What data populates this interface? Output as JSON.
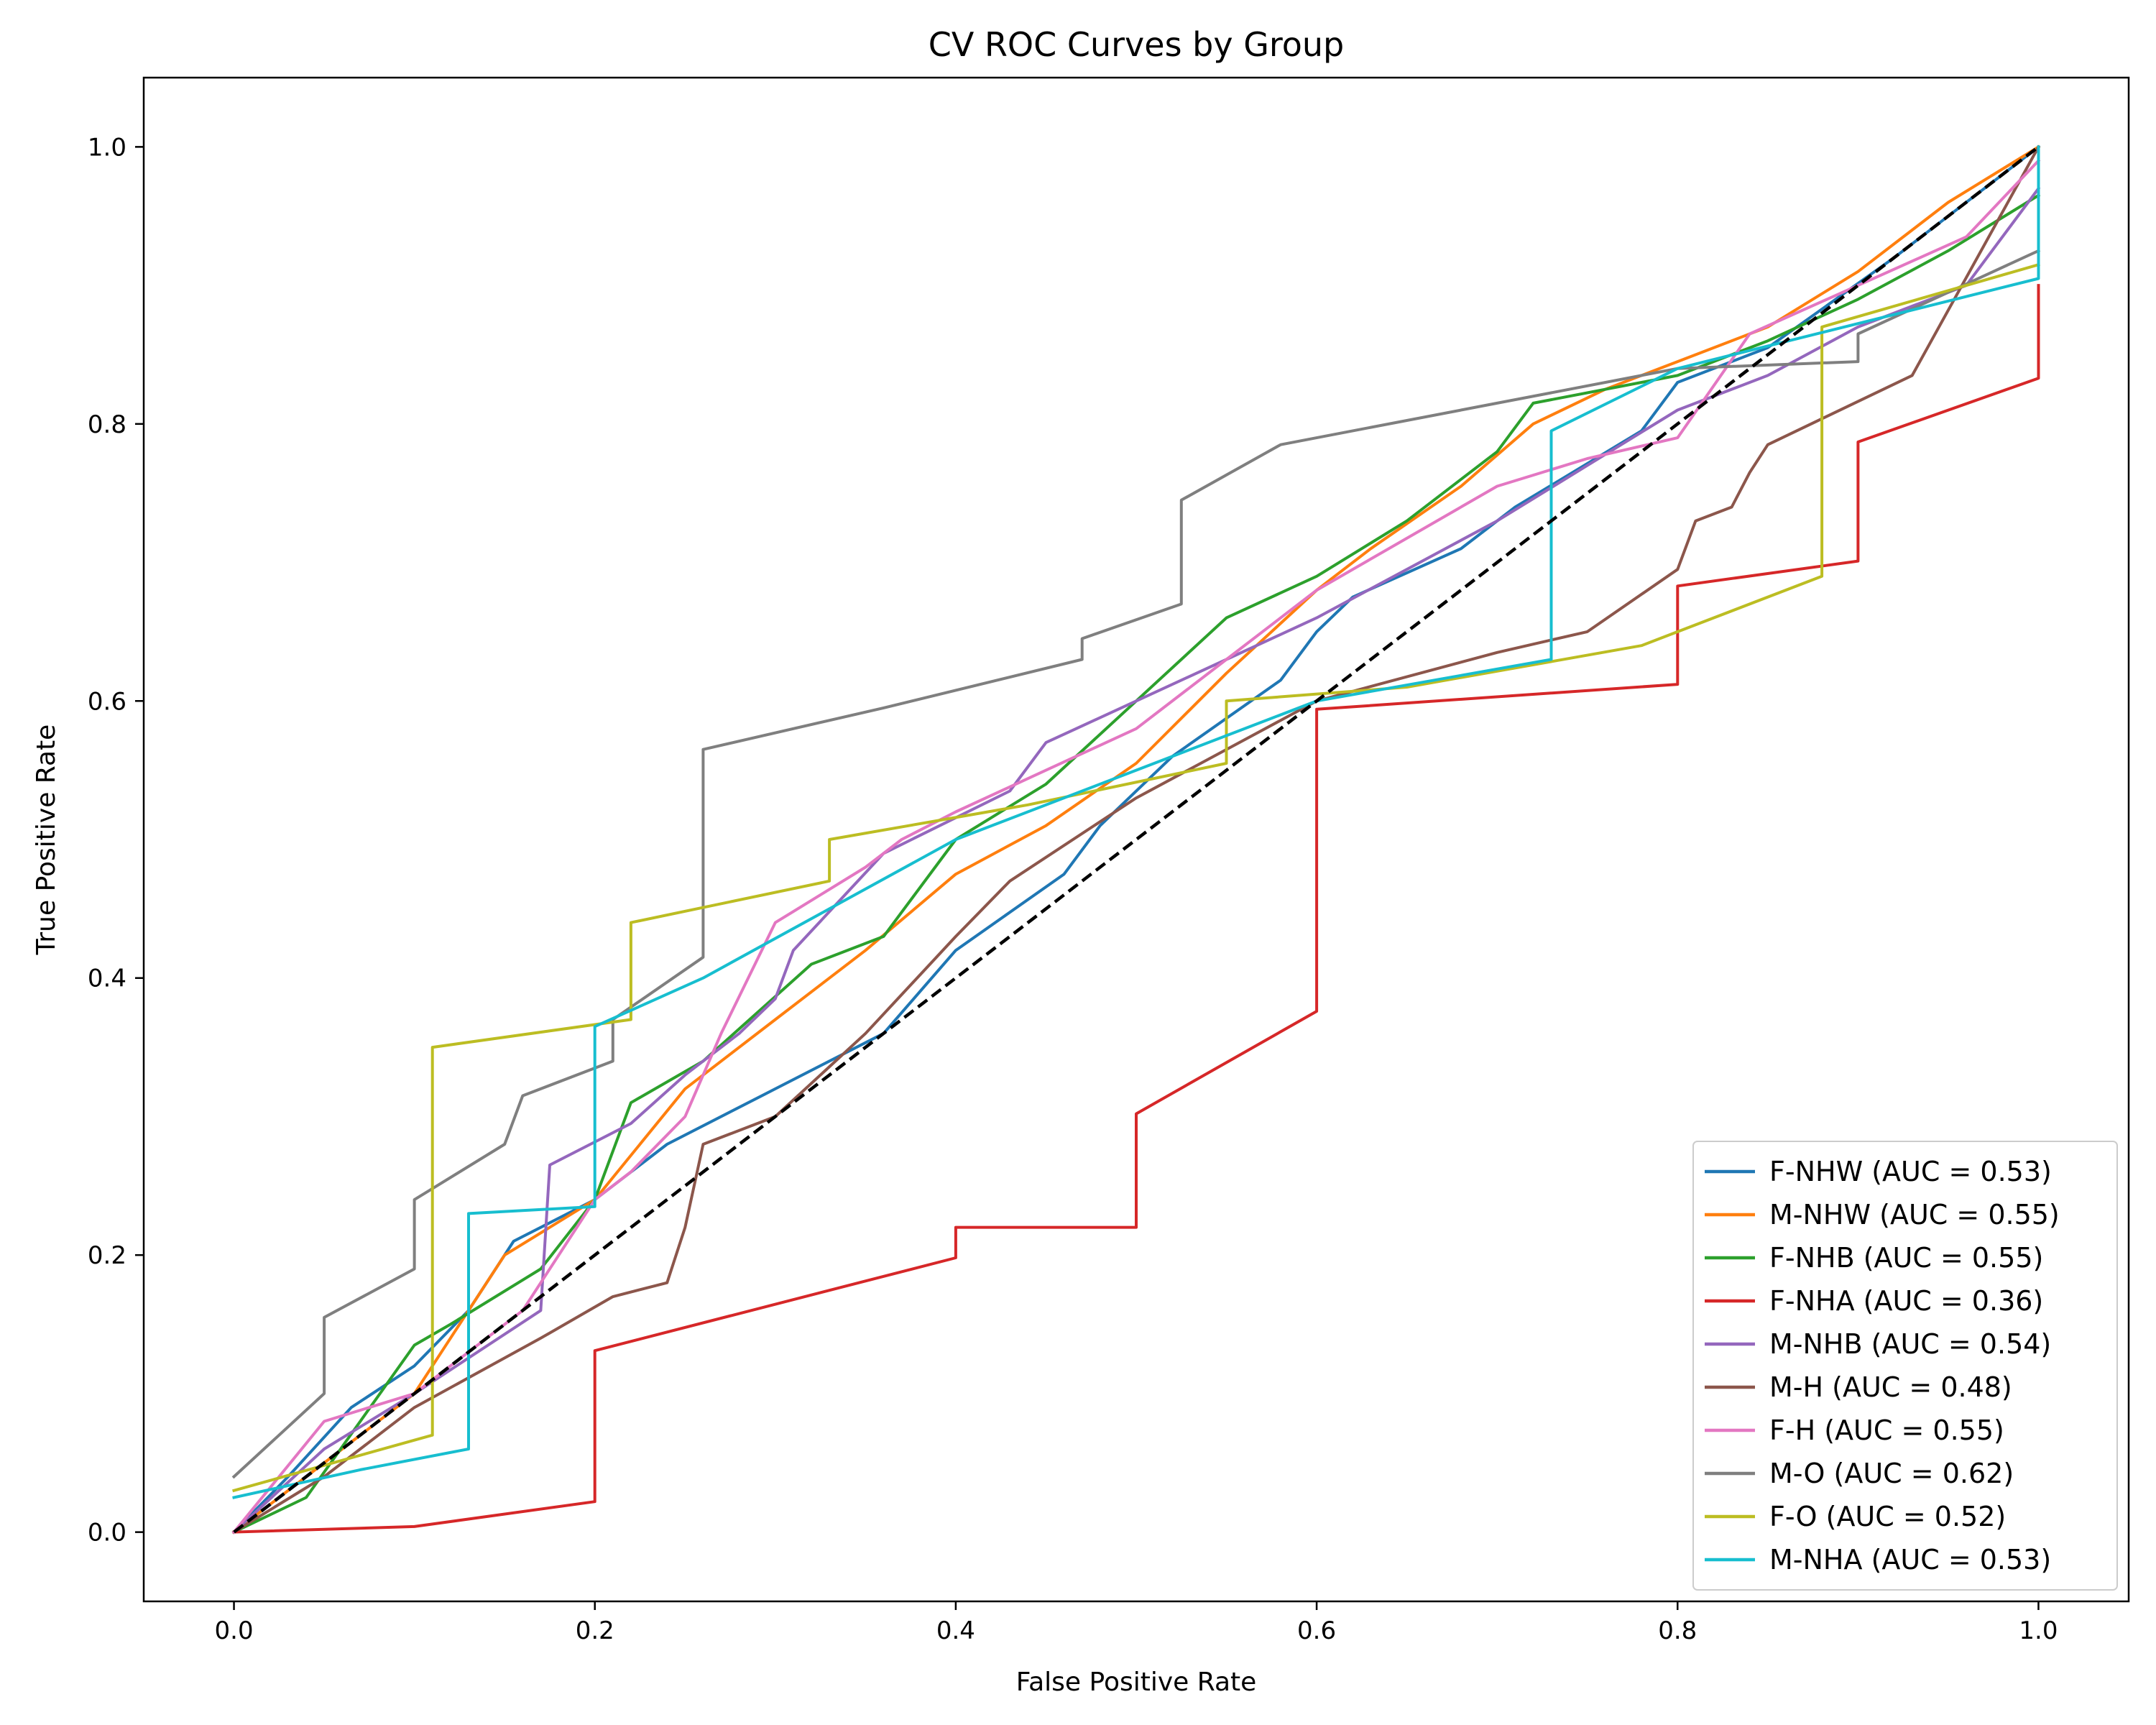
{
  "chart_data": {
    "type": "line",
    "title": "CV ROC Curves by Group",
    "xlabel": "False Positive Rate",
    "ylabel": "True Positive Rate",
    "xlim": [
      -0.05,
      1.05
    ],
    "ylim": [
      -0.05,
      1.05
    ],
    "xticks": [
      "0.0",
      "0.2",
      "0.4",
      "0.6",
      "0.8",
      "1.0"
    ],
    "yticks": [
      "0.0",
      "0.2",
      "0.4",
      "0.6",
      "0.8",
      "1.0"
    ],
    "grid": false,
    "legend_position": "lower right",
    "diagonal": {
      "x": [
        0,
        1
      ],
      "y": [
        0,
        1
      ],
      "color": "#000000",
      "style": "dashed"
    },
    "series": [
      {
        "name": "F-NHW (AUC = 0.53)",
        "color": "#1f77b4",
        "x": [
          0,
          0.03,
          0.065,
          0.1,
          0.13,
          0.155,
          0.2,
          0.24,
          0.3,
          0.36,
          0.4,
          0.46,
          0.48,
          0.52,
          0.58,
          0.6,
          0.62,
          0.68,
          0.71,
          0.78,
          0.8,
          0.85,
          0.92,
          0.95,
          1.0
        ],
        "y": [
          0,
          0.04,
          0.09,
          0.12,
          0.16,
          0.21,
          0.24,
          0.28,
          0.32,
          0.36,
          0.42,
          0.475,
          0.51,
          0.56,
          0.615,
          0.65,
          0.675,
          0.71,
          0.74,
          0.795,
          0.83,
          0.855,
          0.92,
          0.95,
          1.0
        ]
      },
      {
        "name": "M-NHW (AUC = 0.55)",
        "color": "#ff7f0e",
        "x": [
          0,
          0.05,
          0.1,
          0.15,
          0.2,
          0.25,
          0.3,
          0.35,
          0.4,
          0.45,
          0.5,
          0.55,
          0.6,
          0.63,
          0.68,
          0.72,
          0.76,
          0.8,
          0.85,
          0.9,
          0.95,
          1.0
        ],
        "y": [
          0,
          0.05,
          0.1,
          0.2,
          0.24,
          0.32,
          0.37,
          0.42,
          0.475,
          0.51,
          0.555,
          0.62,
          0.68,
          0.71,
          0.755,
          0.8,
          0.825,
          0.845,
          0.87,
          0.91,
          0.96,
          1.0
        ]
      },
      {
        "name": "F-NHB (AUC = 0.55)",
        "color": "#2ca02c",
        "x": [
          0,
          0.04,
          0.1,
          0.12,
          0.17,
          0.2,
          0.22,
          0.26,
          0.32,
          0.36,
          0.4,
          0.45,
          0.5,
          0.55,
          0.6,
          0.65,
          0.7,
          0.72,
          0.8,
          0.85,
          0.9,
          0.95,
          1.0
        ],
        "y": [
          0,
          0.025,
          0.135,
          0.15,
          0.19,
          0.24,
          0.31,
          0.34,
          0.41,
          0.43,
          0.5,
          0.54,
          0.6,
          0.66,
          0.69,
          0.73,
          0.78,
          0.815,
          0.835,
          0.86,
          0.89,
          0.925,
          0.965
        ]
      },
      {
        "name": "F-NHA (AUC = 0.36)",
        "color": "#d62728",
        "x": [
          0,
          0.1,
          0.2,
          0.2,
          0.4,
          0.4,
          0.5,
          0.5,
          0.6,
          0.6,
          0.8,
          0.8,
          0.9,
          0.9,
          1.0,
          1.0
        ],
        "y": [
          0,
          0.004,
          0.022,
          0.131,
          0.198,
          0.22,
          0.22,
          0.302,
          0.376,
          0.594,
          0.612,
          0.683,
          0.701,
          0.787,
          0.833,
          0.9
        ]
      },
      {
        "name": "M-NHB (AUC = 0.54)",
        "color": "#9467bd",
        "x": [
          0,
          0.05,
          0.1,
          0.17,
          0.175,
          0.22,
          0.25,
          0.28,
          0.3,
          0.31,
          0.36,
          0.43,
          0.45,
          0.55,
          0.6,
          0.7,
          0.75,
          0.8,
          0.85,
          0.9,
          0.96,
          1.0
        ],
        "y": [
          0,
          0.06,
          0.1,
          0.16,
          0.265,
          0.295,
          0.33,
          0.36,
          0.385,
          0.42,
          0.49,
          0.535,
          0.57,
          0.63,
          0.66,
          0.73,
          0.77,
          0.81,
          0.835,
          0.87,
          0.9,
          0.97
        ]
      },
      {
        "name": "M-H (AUC = 0.48)",
        "color": "#8c564b",
        "x": [
          0,
          0.05,
          0.1,
          0.17,
          0.21,
          0.24,
          0.25,
          0.26,
          0.3,
          0.35,
          0.4,
          0.43,
          0.5,
          0.6,
          0.7,
          0.75,
          0.8,
          0.81,
          0.83,
          0.84,
          0.85,
          0.93,
          1.0
        ],
        "y": [
          0,
          0.04,
          0.09,
          0.14,
          0.17,
          0.18,
          0.22,
          0.28,
          0.3,
          0.36,
          0.43,
          0.47,
          0.53,
          0.6,
          0.635,
          0.65,
          0.695,
          0.73,
          0.74,
          0.765,
          0.785,
          0.835,
          1.0
        ]
      },
      {
        "name": "F-H (AUC = 0.55)",
        "color": "#e377c2",
        "x": [
          0,
          0.05,
          0.1,
          0.16,
          0.2,
          0.22,
          0.25,
          0.27,
          0.3,
          0.35,
          0.37,
          0.4,
          0.45,
          0.5,
          0.55,
          0.6,
          0.7,
          0.75,
          0.8,
          0.84,
          0.9,
          0.96,
          1.0
        ],
        "y": [
          0,
          0.08,
          0.1,
          0.16,
          0.24,
          0.26,
          0.3,
          0.36,
          0.44,
          0.48,
          0.5,
          0.52,
          0.55,
          0.58,
          0.63,
          0.68,
          0.755,
          0.775,
          0.79,
          0.865,
          0.9,
          0.935,
          0.99
        ]
      },
      {
        "name": "M-O (AUC = 0.62)",
        "color": "#7f7f7f",
        "x": [
          0,
          0.05,
          0.05,
          0.1,
          0.1,
          0.15,
          0.16,
          0.21,
          0.21,
          0.26,
          0.26,
          0.36,
          0.47,
          0.47,
          0.525,
          0.525,
          0.58,
          0.7,
          0.8,
          0.9,
          0.9,
          1.0
        ],
        "y": [
          0.04,
          0.1,
          0.155,
          0.19,
          0.24,
          0.28,
          0.315,
          0.34,
          0.37,
          0.415,
          0.565,
          0.595,
          0.63,
          0.645,
          0.67,
          0.745,
          0.785,
          0.815,
          0.84,
          0.845,
          0.865,
          0.925
        ]
      },
      {
        "name": "F-O (AUC = 0.52)",
        "color": "#bcbd22",
        "x": [
          0,
          0.11,
          0.11,
          0.22,
          0.22,
          0.33,
          0.33,
          0.44,
          0.55,
          0.55,
          0.65,
          0.78,
          0.88,
          0.88,
          1.0
        ],
        "y": [
          0.03,
          0.07,
          0.35,
          0.37,
          0.44,
          0.47,
          0.5,
          0.525,
          0.555,
          0.6,
          0.61,
          0.64,
          0.69,
          0.87,
          0.915
        ]
      },
      {
        "name": "M-NHA (AUC = 0.53)",
        "color": "#17becf",
        "x": [
          0,
          0.07,
          0.13,
          0.13,
          0.2,
          0.2,
          0.26,
          0.33,
          0.4,
          0.5,
          0.6,
          0.73,
          0.73,
          0.8,
          1.0,
          1.0
        ],
        "y": [
          0.025,
          0.045,
          0.06,
          0.23,
          0.235,
          0.365,
          0.4,
          0.45,
          0.5,
          0.55,
          0.6,
          0.63,
          0.795,
          0.84,
          0.905,
          1.0
        ]
      }
    ]
  }
}
